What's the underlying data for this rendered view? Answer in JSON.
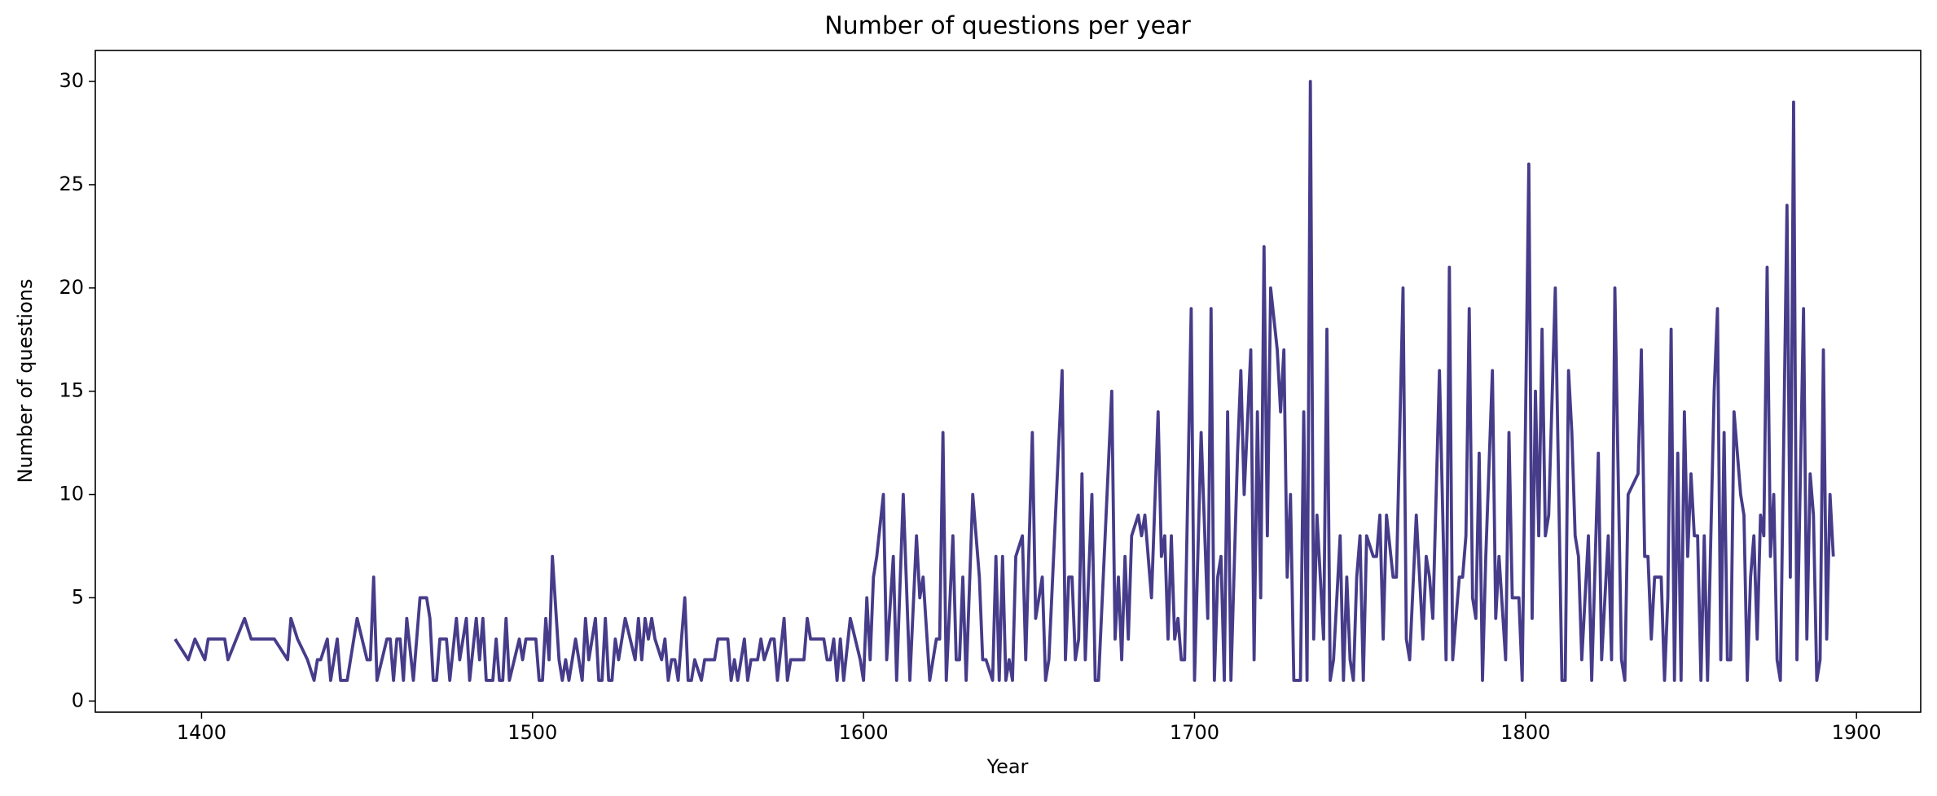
{
  "chart_data": {
    "type": "line",
    "title": "Number of questions per year",
    "x_label": "Year",
    "y_label": "Number of questions",
    "color": "#463c8a",
    "grid": false,
    "xlim": [
      1367.9,
      1919.4
    ],
    "xticks": [
      1400,
      1500,
      1600,
      1700,
      1800,
      1900
    ],
    "ylim": [
      -0.54,
      31.5
    ],
    "yticks": [
      0,
      5,
      10,
      15,
      20,
      25,
      30
    ],
    "x": [
      1392,
      1396,
      1398,
      1401,
      1402,
      1407,
      1408,
      1413,
      1415,
      1422,
      1426,
      1427,
      1429,
      1432,
      1434,
      1435,
      1436,
      1438,
      1439,
      1441,
      1442,
      1444,
      1447,
      1450,
      1451,
      1452,
      1453,
      1456,
      1457,
      1458,
      1459,
      1460,
      1461,
      1462,
      1464,
      1466,
      1468,
      1469,
      1470,
      1471,
      1472,
      1474,
      1475,
      1477,
      1478,
      1480,
      1481,
      1483,
      1484,
      1485,
      1486,
      1488,
      1489,
      1490,
      1491,
      1492,
      1493,
      1496,
      1497,
      1498,
      1501,
      1502,
      1503,
      1504,
      1505,
      1506,
      1508,
      1509,
      1510,
      1511,
      1513,
      1515,
      1516,
      1517,
      1519,
      1520,
      1521,
      1522,
      1523,
      1524,
      1525,
      1526,
      1528,
      1531,
      1532,
      1533,
      1534,
      1535,
      1536,
      1537,
      1539,
      1540,
      1541,
      1542,
      1543,
      1544,
      1546,
      1547,
      1548,
      1549,
      1551,
      1552,
      1555,
      1556,
      1559,
      1560,
      1561,
      1562,
      1564,
      1565,
      1566,
      1568,
      1569,
      1570,
      1572,
      1573,
      1574,
      1576,
      1577,
      1578,
      1582,
      1583,
      1584,
      1588,
      1589,
      1590,
      1591,
      1592,
      1593,
      1594,
      1596,
      1599,
      1600,
      1601,
      1602,
      1603,
      1604,
      1606,
      1607,
      1609,
      1610,
      1612,
      1614,
      1616,
      1617,
      1618,
      1620,
      1622,
      1623,
      1624,
      1625,
      1627,
      1628,
      1629,
      1630,
      1631,
      1633,
      1635,
      1636,
      1637,
      1639,
      1640,
      1641,
      1642,
      1643,
      1644,
      1645,
      1646,
      1648,
      1649,
      1651,
      1652,
      1654,
      1655,
      1656,
      1660,
      1661,
      1662,
      1663,
      1664,
      1665,
      1666,
      1667,
      1669,
      1670,
      1671,
      1675,
      1676,
      1677,
      1678,
      1679,
      1680,
      1681,
      1683,
      1684,
      1685,
      1687,
      1689,
      1690,
      1691,
      1692,
      1693,
      1694,
      1695,
      1696,
      1697,
      1699,
      1700,
      1702,
      1704,
      1705,
      1706,
      1707,
      1708,
      1709,
      1710,
      1711,
      1713,
      1714,
      1715,
      1717,
      1718,
      1719,
      1720,
      1721,
      1722,
      1723,
      1725,
      1726,
      1727,
      1728,
      1729,
      1730,
      1732,
      1733,
      1734,
      1735,
      1736,
      1737,
      1739,
      1740,
      1741,
      1742,
      1744,
      1745,
      1746,
      1747,
      1748,
      1749,
      1750,
      1751,
      1752,
      1754,
      1755,
      1756,
      1757,
      1758,
      1760,
      1761,
      1763,
      1764,
      1765,
      1767,
      1769,
      1770,
      1771,
      1772,
      1774,
      1776,
      1777,
      1778,
      1780,
      1781,
      1782,
      1783,
      1784,
      1785,
      1786,
      1787,
      1788,
      1790,
      1791,
      1792,
      1794,
      1795,
      1796,
      1798,
      1799,
      1801,
      1802,
      1803,
      1804,
      1805,
      1806,
      1807,
      1809,
      1811,
      1812,
      1813,
      1814,
      1815,
      1816,
      1817,
      1819,
      1820,
      1822,
      1823,
      1825,
      1826,
      1827,
      1829,
      1830,
      1831,
      1834,
      1835,
      1836,
      1837,
      1838,
      1839,
      1841,
      1842,
      1843,
      1844,
      1845,
      1846,
      1847,
      1848,
      1849,
      1850,
      1851,
      1852,
      1853,
      1854,
      1855,
      1857,
      1858,
      1859,
      1860,
      1861,
      1862,
      1863,
      1865,
      1866,
      1867,
      1868,
      1869,
      1870,
      1871,
      1872,
      1873,
      1874,
      1875,
      1876,
      1877,
      1879,
      1880,
      1881,
      1882,
      1884,
      1885,
      1886,
      1887,
      1888,
      1889,
      1890,
      1891,
      1892,
      1893
    ],
    "values": [
      3,
      2,
      3,
      2,
      3,
      3,
      2,
      4,
      3,
      3,
      2,
      4,
      3,
      2,
      1,
      2,
      2,
      3,
      1,
      3,
      1,
      1,
      4,
      2,
      2,
      6,
      1,
      3,
      3,
      1,
      3,
      3,
      1,
      4,
      1,
      5,
      5,
      4,
      1,
      1,
      3,
      3,
      1,
      4,
      2,
      4,
      1,
      4,
      2,
      4,
      1,
      1,
      3,
      1,
      1,
      4,
      1,
      3,
      2,
      3,
      3,
      1,
      1,
      4,
      2,
      7,
      2,
      1,
      2,
      1,
      3,
      1,
      4,
      2,
      4,
      1,
      1,
      4,
      1,
      1,
      3,
      2,
      4,
      2,
      4,
      2,
      4,
      3,
      4,
      3,
      2,
      3,
      1,
      2,
      2,
      1,
      5,
      1,
      1,
      2,
      1,
      2,
      2,
      3,
      3,
      1,
      2,
      1,
      3,
      1,
      2,
      2,
      3,
      2,
      3,
      3,
      1,
      4,
      1,
      2,
      2,
      4,
      3,
      3,
      2,
      2,
      3,
      1,
      3,
      1,
      4,
      2,
      1,
      5,
      2,
      6,
      7,
      10,
      2,
      7,
      1,
      10,
      1,
      8,
      5,
      6,
      1,
      3,
      3,
      13,
      1,
      8,
      2,
      2,
      6,
      1,
      10,
      6,
      2,
      2,
      1,
      7,
      1,
      7,
      1,
      2,
      1,
      7,
      8,
      2,
      13,
      4,
      6,
      1,
      2,
      16,
      2,
      6,
      6,
      2,
      3,
      11,
      2,
      10,
      1,
      1,
      15,
      3,
      6,
      2,
      7,
      3,
      8,
      9,
      8,
      9,
      5,
      14,
      7,
      8,
      3,
      8,
      3,
      4,
      2,
      2,
      19,
      1,
      13,
      4,
      19,
      1,
      6,
      7,
      1,
      14,
      1,
      12,
      16,
      10,
      17,
      2,
      14,
      5,
      22,
      8,
      20,
      17,
      14,
      17,
      6,
      10,
      1,
      1,
      14,
      1,
      30,
      3,
      9,
      3,
      18,
      1,
      2,
      8,
      1,
      6,
      2,
      1,
      6,
      8,
      1,
      8,
      7,
      7,
      9,
      3,
      9,
      6,
      6,
      20,
      3,
      2,
      9,
      3,
      7,
      6,
      4,
      16,
      2,
      21,
      2,
      6,
      6,
      8,
      19,
      5,
      4,
      12,
      1,
      7,
      16,
      4,
      7,
      2,
      13,
      5,
      5,
      1,
      26,
      4,
      15,
      8,
      18,
      8,
      9,
      20,
      1,
      1,
      16,
      13,
      8,
      7,
      2,
      8,
      1,
      12,
      2,
      8,
      2,
      20,
      2,
      1,
      10,
      11,
      17,
      7,
      7,
      3,
      6,
      6,
      1,
      5,
      18,
      1,
      12,
      1,
      14,
      7,
      11,
      8,
      8,
      1,
      8,
      1,
      15,
      19,
      2,
      13,
      2,
      2,
      14,
      10,
      9,
      1,
      6,
      8,
      3,
      9,
      8,
      21,
      7,
      10,
      2,
      1,
      24,
      6,
      29,
      2,
      19,
      3,
      11,
      9,
      1,
      2,
      17,
      3,
      10,
      7
    ]
  }
}
